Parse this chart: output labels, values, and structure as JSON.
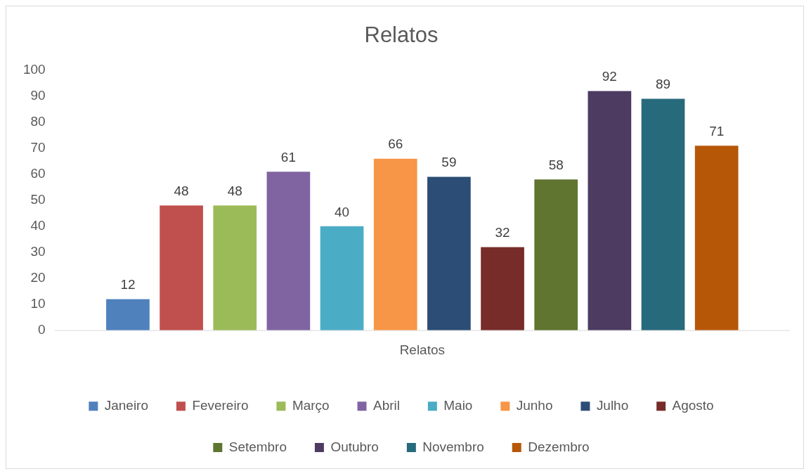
{
  "chart_data": {
    "type": "bar",
    "title": "Relatos",
    "categories": [
      "Relatos"
    ],
    "ylim": [
      0,
      100
    ],
    "yticks": [
      0,
      10,
      20,
      30,
      40,
      50,
      60,
      70,
      80,
      90,
      100
    ],
    "grid": false,
    "legend": "bottom",
    "data_labels": true,
    "series": [
      {
        "name": "Janeiro",
        "color": "#4f81bd",
        "values": [
          12
        ]
      },
      {
        "name": "Fevereiro",
        "color": "#c0504d",
        "values": [
          48
        ]
      },
      {
        "name": "Março",
        "color": "#9bbb59",
        "values": [
          48
        ]
      },
      {
        "name": "Abril",
        "color": "#8064a2",
        "values": [
          61
        ]
      },
      {
        "name": "Maio",
        "color": "#4bacc6",
        "values": [
          40
        ]
      },
      {
        "name": "Junho",
        "color": "#f79646",
        "values": [
          66
        ]
      },
      {
        "name": "Julho",
        "color": "#2c4d75",
        "values": [
          59
        ]
      },
      {
        "name": "Agosto",
        "color": "#772c2a",
        "values": [
          32
        ]
      },
      {
        "name": "Setembro",
        "color": "#5f7530",
        "values": [
          58
        ]
      },
      {
        "name": "Outubro",
        "color": "#4d3b62",
        "values": [
          92
        ]
      },
      {
        "name": "Novembro",
        "color": "#276a7c",
        "values": [
          89
        ]
      },
      {
        "name": "Dezembro",
        "color": "#b65708",
        "values": [
          71
        ]
      }
    ]
  }
}
